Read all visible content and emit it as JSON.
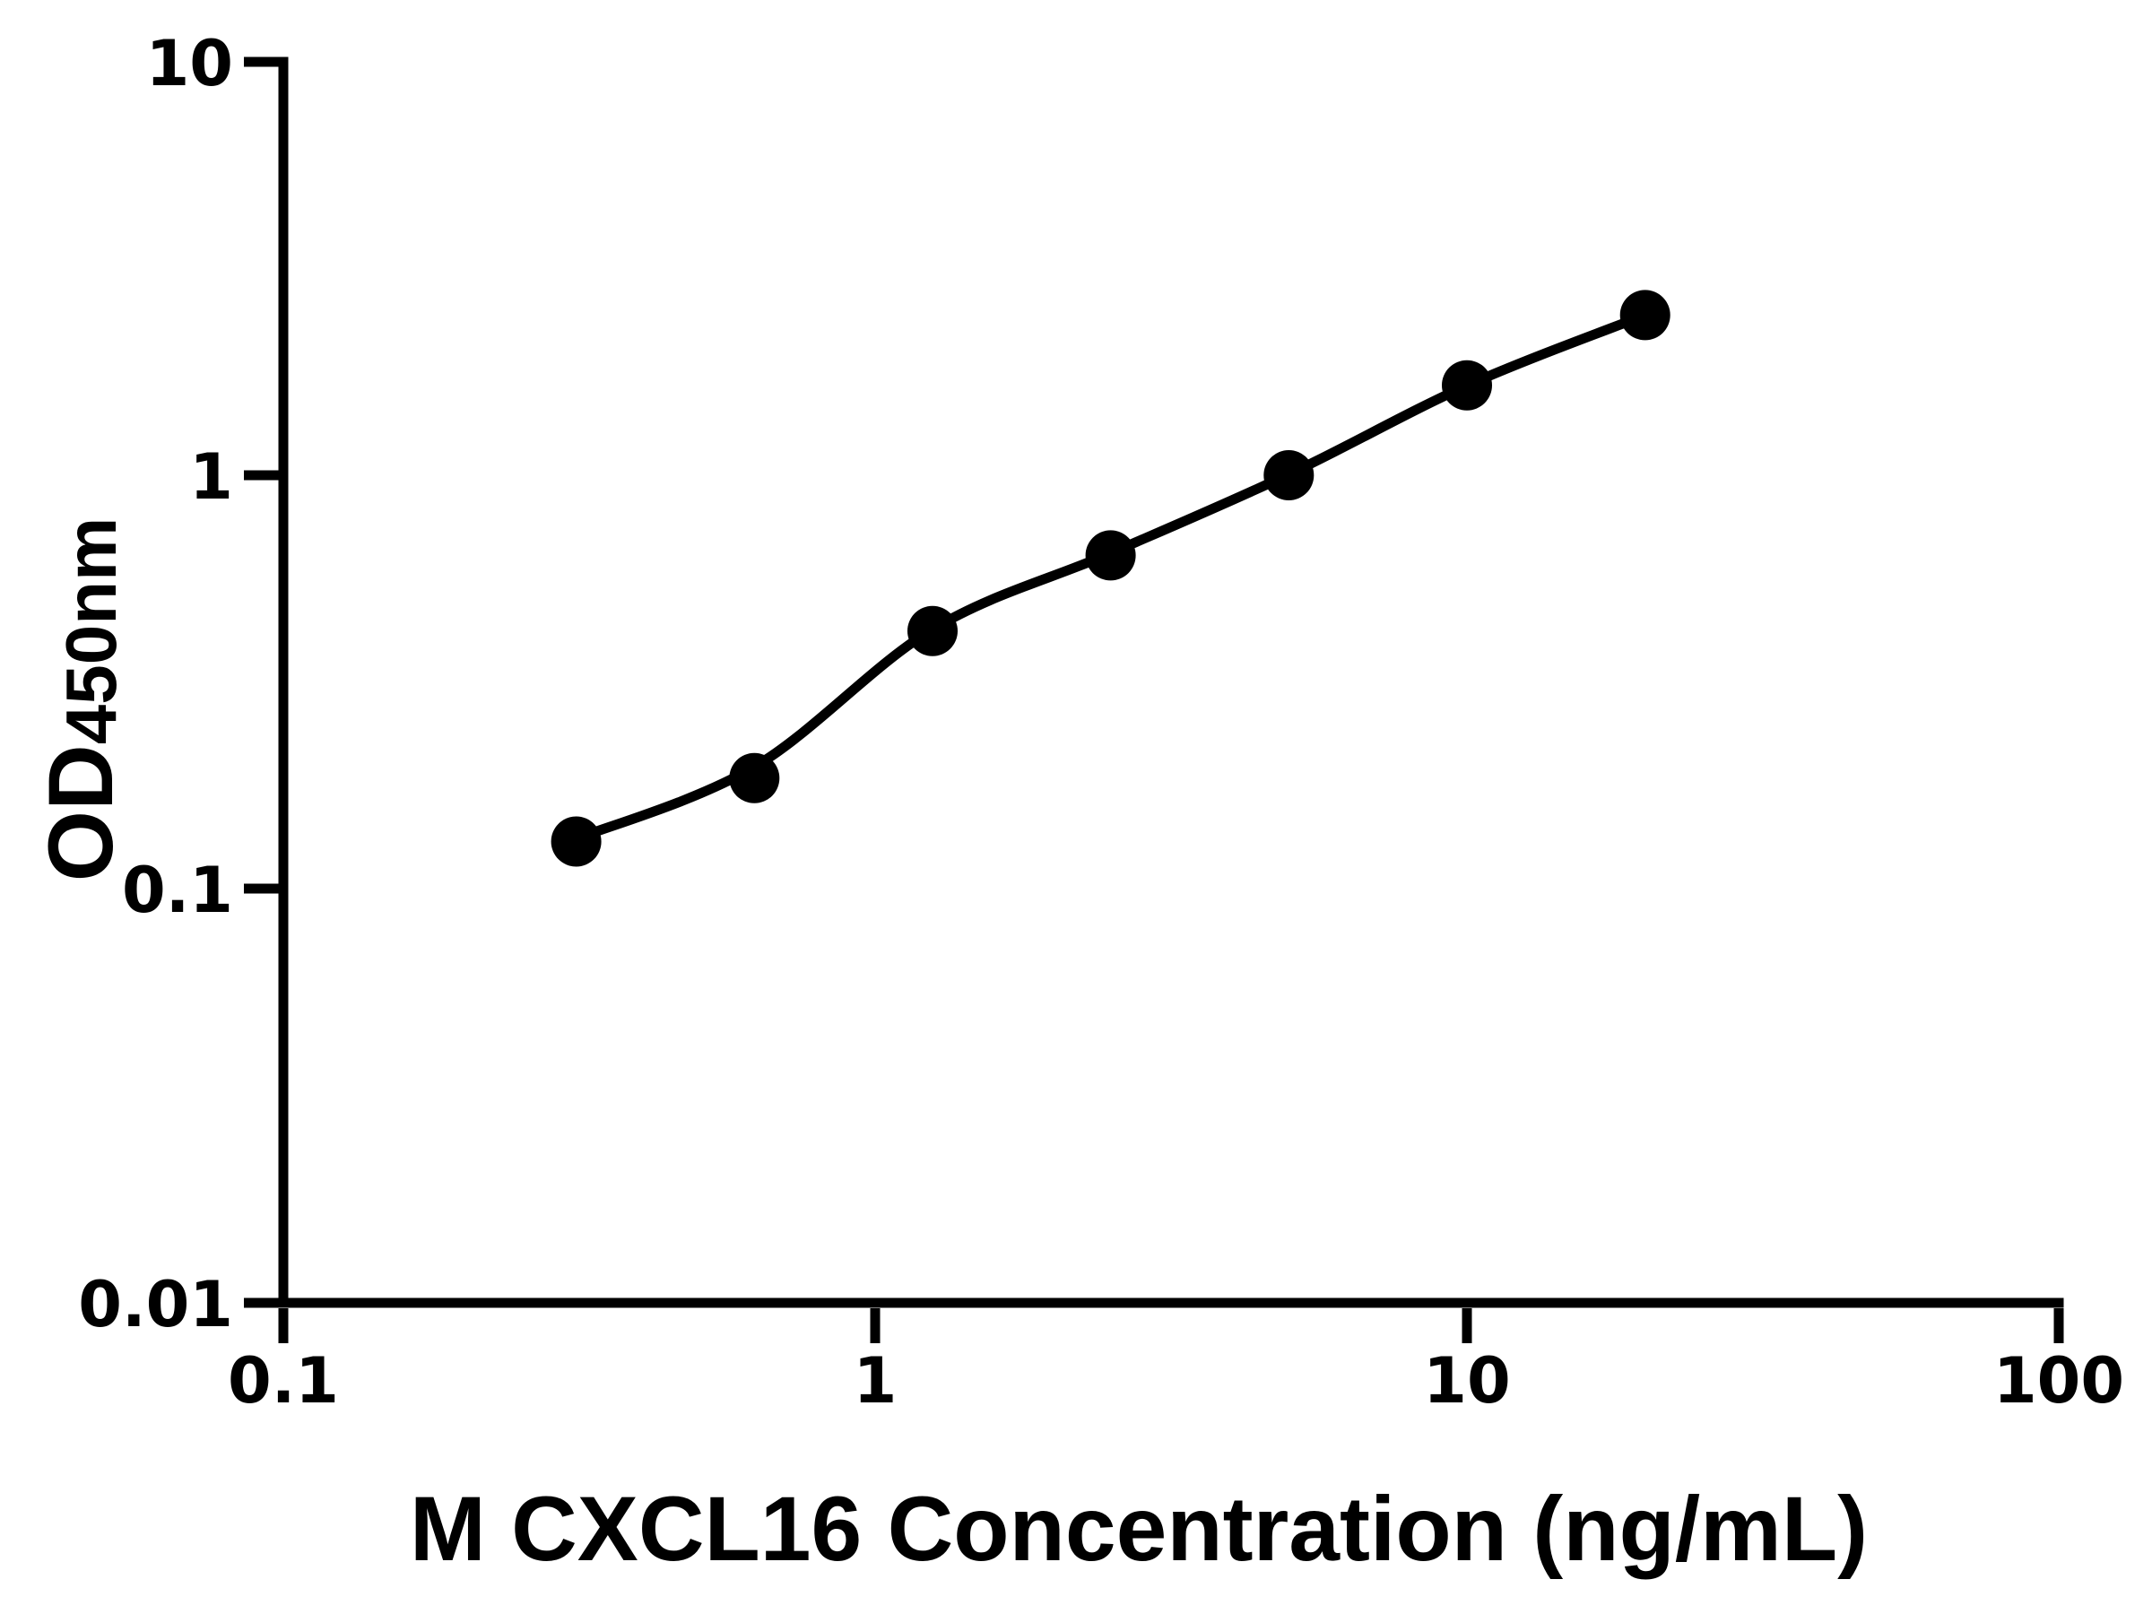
{
  "figure": {
    "background": "#ffffff",
    "ink_color": "#000000"
  },
  "chart_data": {
    "type": "scatter",
    "title": "",
    "xlabel": "M CXCL16 Concentration (ng/mL)",
    "ylabel": "OD450nm",
    "ylabel_main": "OD",
    "ylabel_sub": "450nm",
    "x_scale": "log",
    "y_scale": "log",
    "xlim": [
      0.1,
      100
    ],
    "ylim": [
      0.01,
      10
    ],
    "x_tick_values": [
      0.1,
      1,
      10,
      100
    ],
    "x_tick_labels": [
      "0.1",
      "1",
      "10",
      "100"
    ],
    "y_tick_values": [
      10,
      1,
      0.1,
      0.01
    ],
    "y_tick_labels": [
      "10",
      "1",
      "0.1",
      "0.01"
    ],
    "grid": false,
    "legend": false,
    "series": [
      {
        "marker": "filled-circle",
        "color": "#000000",
        "x": [
          0.3125,
          0.625,
          1.25,
          2.5,
          5,
          10,
          20
        ],
        "y": [
          0.13,
          0.185,
          0.42,
          0.64,
          1.0,
          1.65,
          2.44
        ]
      }
    ],
    "fit_curve": {
      "style": "solid",
      "color": "#000000",
      "x": [
        0.3125,
        0.625,
        1.25,
        2.5,
        5,
        10,
        20
      ],
      "y": [
        0.132,
        0.197,
        0.424,
        0.648,
        1.005,
        1.648,
        2.44
      ]
    }
  }
}
